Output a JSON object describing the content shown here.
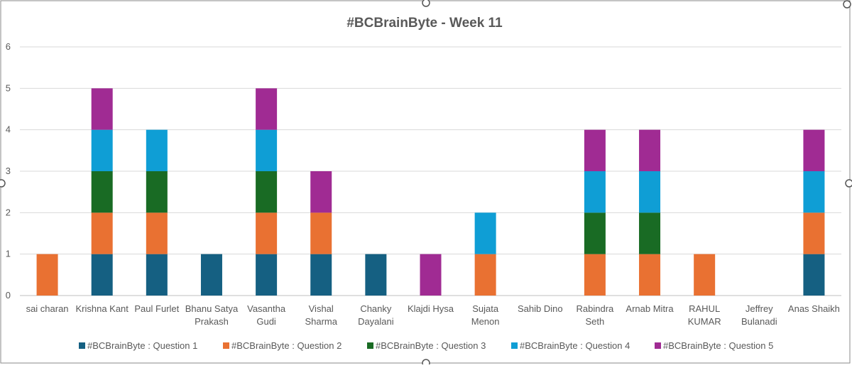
{
  "chart_data": {
    "type": "bar",
    "stacked": true,
    "title": "#BCBrainByte - Week 11",
    "xlabel": "",
    "ylabel": "",
    "ylim": [
      0,
      6
    ],
    "yticks": [
      "0",
      "1",
      "2",
      "3",
      "4",
      "5",
      "6"
    ],
    "grid": true,
    "legend_position": "bottom",
    "categories": [
      [
        "sai charan"
      ],
      [
        "Krishna Kant"
      ],
      [
        "Paul Furlet"
      ],
      [
        "Bhanu Satya",
        "Prakash"
      ],
      [
        "Vasantha",
        "Gudi"
      ],
      [
        "Vishal",
        "Sharma"
      ],
      [
        "Chanky",
        "Dayalani"
      ],
      [
        "Klajdi Hysa"
      ],
      [
        "Sujata",
        "Menon"
      ],
      [
        "Sahib Dino"
      ],
      [
        "Rabindra",
        "Seth"
      ],
      [
        "Arnab Mitra"
      ],
      [
        "RAHUL",
        "KUMAR"
      ],
      [
        "Jeffrey",
        "Bulanadi"
      ],
      [
        "Anas Shaikh"
      ]
    ],
    "series": [
      {
        "name": "#BCBrainByte : Question 1",
        "color": "#156082",
        "values": [
          0,
          1,
          1,
          1,
          1,
          1,
          1,
          0,
          0,
          0,
          0,
          0,
          0,
          0,
          1
        ]
      },
      {
        "name": "#BCBrainByte : Question 2",
        "color": "#E97132",
        "values": [
          1,
          1,
          1,
          0,
          1,
          1,
          0,
          0,
          1,
          0,
          1,
          1,
          1,
          0,
          1
        ]
      },
      {
        "name": "#BCBrainByte : Question 3",
        "color": "#196B24",
        "values": [
          0,
          1,
          1,
          0,
          1,
          0,
          0,
          0,
          0,
          0,
          1,
          1,
          0,
          0,
          0
        ]
      },
      {
        "name": "#BCBrainByte : Question 4",
        "color": "#0F9ED5",
        "values": [
          0,
          1,
          1,
          0,
          1,
          0,
          0,
          0,
          1,
          0,
          1,
          1,
          0,
          0,
          1
        ]
      },
      {
        "name": "#BCBrainByte : Question 5",
        "color": "#A02B93",
        "values": [
          0,
          1,
          0,
          0,
          1,
          1,
          0,
          1,
          0,
          0,
          1,
          1,
          0,
          0,
          1
        ]
      }
    ]
  }
}
